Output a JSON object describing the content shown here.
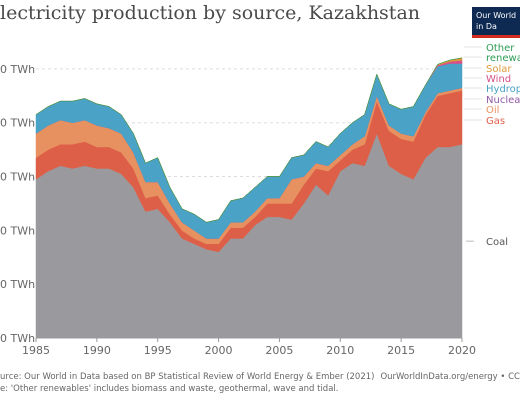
{
  "title": "lectricity production by source, Kazakhstan",
  "logo": {
    "line1": "Our World",
    "line2": "in Da"
  },
  "footer": {
    "source": "urce: Our World in Data based on BP Statistical Review of World Energy & Ember (2021)",
    "note": "e: 'Other renewables' includes biomass and waste, geothermal, wave and tidal.",
    "url": "OurWorldInData.org/energy • CC"
  },
  "colors": {
    "Coal": "#9a9a9e",
    "Gas": "#dd5f48",
    "Oil": "#e89160",
    "Nuclear": "#915aa6",
    "Hydropower": "#4aa3c6",
    "Wind": "#d8508a",
    "Solar": "#dd9b3a",
    "Other renewables": "#2e9b55"
  },
  "chart_data": {
    "type": "area",
    "stacked": true,
    "title": "lectricity production by source, Kazakhstan",
    "yunit": "TWh",
    "ylim": [
      0,
      110
    ],
    "y_ticks": [
      0,
      20,
      40,
      60,
      80,
      100
    ],
    "y_tick_labels": [
      "0 TWh",
      "0 TWh",
      "0 TWh",
      "0 TWh",
      "0 TWh",
      "0 TWh"
    ],
    "xlim": [
      1985,
      2020
    ],
    "x_ticks": [
      1985,
      1990,
      1995,
      2000,
      2005,
      2010,
      2015,
      2020
    ],
    "x_tick_labels": [
      "1985",
      "1990",
      "1995",
      "2000",
      "2005",
      "2010",
      "2015",
      "2020"
    ],
    "x": [
      1985,
      1986,
      1987,
      1988,
      1989,
      1990,
      1991,
      1992,
      1993,
      1994,
      1995,
      1996,
      1997,
      1998,
      1999,
      2000,
      2001,
      2002,
      2003,
      2004,
      2005,
      2006,
      2007,
      2008,
      2009,
      2010,
      2011,
      2012,
      2013,
      2014,
      2015,
      2016,
      2017,
      2018,
      2019,
      2020
    ],
    "series": [
      {
        "name": "Coal",
        "values": [
          59,
          62,
          64,
          63,
          64,
          63,
          63,
          61,
          56,
          47,
          48,
          43,
          37,
          35,
          33,
          32,
          37,
          37,
          42,
          45,
          45,
          44,
          50,
          57,
          53,
          62,
          65,
          64,
          76,
          64,
          61,
          59,
          67,
          71,
          71,
          72
        ]
      },
      {
        "name": "Gas",
        "values": [
          8,
          8,
          8,
          9,
          9,
          8,
          8,
          8,
          7,
          5,
          5,
          3,
          3,
          2,
          2,
          3,
          4,
          4,
          3,
          5,
          5,
          6,
          7,
          6,
          9,
          4,
          5,
          8,
          12,
          13,
          13,
          14,
          16,
          19,
          20,
          20
        ]
      },
      {
        "name": "Oil",
        "values": [
          9,
          9,
          9,
          8,
          8,
          8,
          7,
          7,
          6,
          6,
          5,
          4,
          3,
          3,
          2,
          2,
          2,
          2,
          2,
          2,
          2,
          9,
          3,
          2,
          2,
          2,
          2,
          3,
          2,
          2,
          2,
          2,
          1,
          1,
          1,
          1
        ]
      },
      {
        "name": "Nuclear",
        "values": [
          0,
          0,
          0,
          0,
          0,
          0,
          0,
          0,
          0,
          0,
          0,
          0,
          0,
          0,
          0,
          0,
          0,
          0,
          0,
          0,
          0,
          0,
          0,
          0,
          0,
          0,
          0,
          0,
          0,
          0,
          0,
          0,
          0,
          0,
          0,
          0
        ]
      },
      {
        "name": "Hydropower",
        "values": [
          7,
          7,
          7,
          8,
          8,
          8,
          8,
          7,
          7,
          7,
          9,
          6,
          5,
          6,
          6,
          7,
          8,
          9,
          9,
          8,
          8,
          8,
          8,
          8,
          7,
          8,
          8,
          8,
          8,
          8,
          9,
          11,
          10,
          10,
          10,
          9
        ]
      },
      {
        "name": "Wind",
        "values": [
          0,
          0,
          0,
          0,
          0,
          0,
          0,
          0,
          0,
          0,
          0,
          0,
          0,
          0,
          0,
          0,
          0,
          0,
          0,
          0,
          0,
          0,
          0,
          0,
          0,
          0,
          0,
          0,
          0,
          0,
          0,
          0,
          0,
          0.4,
          0.7,
          1.2
        ]
      },
      {
        "name": "Solar",
        "values": [
          0,
          0,
          0,
          0,
          0,
          0,
          0,
          0,
          0,
          0,
          0,
          0,
          0,
          0,
          0,
          0,
          0,
          0,
          0,
          0,
          0,
          0,
          0,
          0,
          0,
          0,
          0,
          0,
          0,
          0,
          0,
          0,
          0,
          0.3,
          0.6,
          0.9
        ]
      },
      {
        "name": "Other renewables",
        "values": [
          0,
          0,
          0,
          0,
          0,
          0,
          0,
          0,
          0,
          0,
          0,
          0,
          0,
          0,
          0,
          0,
          0,
          0,
          0,
          0,
          0,
          0,
          0,
          0,
          0,
          0,
          0,
          0,
          0,
          0,
          0,
          0,
          0,
          0,
          0,
          0
        ]
      }
    ],
    "legend": {
      "placement": "right",
      "entries": [
        {
          "label": "Other",
          "series": "Other renewables"
        },
        {
          "label": "renewab",
          "series": "Other renewables"
        },
        {
          "label": "Solar",
          "series": "Solar"
        },
        {
          "label": "Wind",
          "series": "Wind"
        },
        {
          "label": "Hydropo",
          "series": "Hydropower"
        },
        {
          "label": "Nuclear",
          "series": "Nuclear"
        },
        {
          "label": "Oil",
          "series": "Oil"
        },
        {
          "label": "Gas",
          "series": "Gas"
        },
        {
          "label": "Coal",
          "series": "Coal"
        }
      ]
    },
    "grid": true
  }
}
